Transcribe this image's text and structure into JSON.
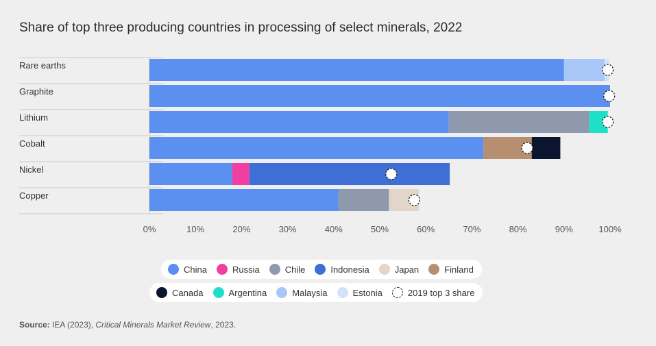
{
  "title": "Share of top three producing countries in processing of select minerals, 2022",
  "source": {
    "label": "Source:",
    "text_before": "IEA (2023),",
    "publication": "Critical Minerals Market Review",
    "text_after": ", 2023."
  },
  "chart_data": {
    "type": "bar",
    "orientation": "horizontal",
    "stacked": true,
    "title": "Share of top three producing countries in processing of select minerals, 2022",
    "xlim": [
      0,
      100
    ],
    "xticks": [
      "0%",
      "10%",
      "20%",
      "30%",
      "40%",
      "50%",
      "60%",
      "70%",
      "80%",
      "90%",
      "100%"
    ],
    "categories": [
      "Rare earths",
      "Graphite",
      "Lithium",
      "Cobalt",
      "Nickel",
      "Copper"
    ],
    "colors": {
      "China": "#5b8ff0",
      "Russia": "#f03fa0",
      "Chile": "#8e99ad",
      "Indonesia": "#3f6fd4",
      "Japan": "#e2d5ca",
      "Finland": "#b58f6f",
      "Canada": "#0b1530",
      "Argentina": "#1ee0c8",
      "Malaysia": "#a9c6f8",
      "Estonia": "#d3e2fb"
    },
    "bars": [
      {
        "category": "Rare earths",
        "segments": [
          {
            "country": "China",
            "value": 90
          },
          {
            "country": "Malaysia",
            "value": 8.8
          },
          {
            "country": "Estonia",
            "value": 1
          }
        ],
        "top3_2019": 99.5
      },
      {
        "category": "Graphite",
        "segments": [
          {
            "country": "China",
            "value": 100
          }
        ],
        "top3_2019": 99.8
      },
      {
        "category": "Lithium",
        "segments": [
          {
            "country": "China",
            "value": 65
          },
          {
            "country": "Chile",
            "value": 30.5
          },
          {
            "country": "Argentina",
            "value": 4
          }
        ],
        "top3_2019": 99.5
      },
      {
        "category": "Cobalt",
        "segments": [
          {
            "country": "China",
            "value": 72.5
          },
          {
            "country": "Finland",
            "value": 10.5
          },
          {
            "country": "Canada",
            "value": 6.2
          }
        ],
        "top3_2019": 82
      },
      {
        "category": "Nickel",
        "segments": [
          {
            "country": "China",
            "value": 18
          },
          {
            "country": "Russia",
            "value": 3.7
          },
          {
            "country": "Indonesia",
            "value": 43.5
          }
        ],
        "top3_2019": 52.5
      },
      {
        "category": "Copper",
        "segments": [
          {
            "country": "China",
            "value": 41
          },
          {
            "country": "Chile",
            "value": 11
          },
          {
            "country": "Japan",
            "value": 6.5
          }
        ],
        "top3_2019": 57.5
      }
    ],
    "legend": {
      "row1": [
        "China",
        "Russia",
        "Chile",
        "Indonesia",
        "Japan",
        "Finland"
      ],
      "row2": [
        "Canada",
        "Argentina",
        "Malaysia",
        "Estonia"
      ],
      "marker_label": "2019 top 3 share"
    }
  }
}
